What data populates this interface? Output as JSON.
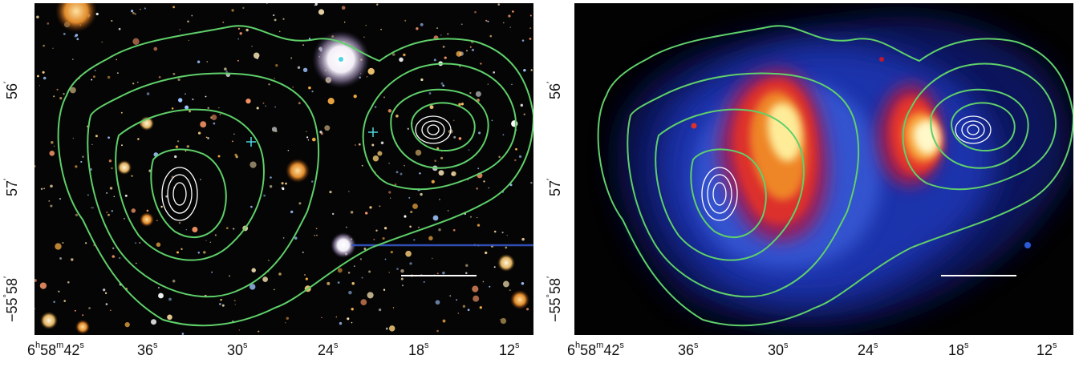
{
  "panels": [
    {
      "id": "left",
      "description_key": "optical",
      "x_tick_labels": [
        {
          "h": "6",
          "m": "58",
          "s": "42",
          "full": true
        },
        {
          "s": "36"
        },
        {
          "s": "30"
        },
        {
          "s": "24"
        },
        {
          "s": "18"
        },
        {
          "s": "12"
        }
      ],
      "y_tick_labels": [
        {
          "deg": "",
          "min": "56",
          "full": false
        },
        {
          "deg": "",
          "min": "57",
          "full": false
        },
        {
          "deg": "−55",
          "min": "58",
          "full": true
        }
      ]
    },
    {
      "id": "right",
      "description_key": "xray",
      "x_tick_labels": [
        {
          "h": "6",
          "m": "58",
          "s": "42",
          "full": true
        },
        {
          "s": "36"
        },
        {
          "s": "30"
        },
        {
          "s": "24"
        },
        {
          "s": "18"
        },
        {
          "s": "12"
        }
      ],
      "y_tick_labels": [
        {
          "deg": "",
          "min": "56",
          "full": false
        },
        {
          "deg": "",
          "min": "57",
          "full": false
        },
        {
          "deg": "−55",
          "min": "58",
          "full": true
        }
      ]
    }
  ],
  "colors": {
    "contour_green": "#5fd06a",
    "contour_white": "#ffffff",
    "marker_cyan": "#4fd6e0",
    "xray_low": "#1a2fa8",
    "xray_mid": "#c0182e",
    "xray_high": "#fff6a8"
  }
}
